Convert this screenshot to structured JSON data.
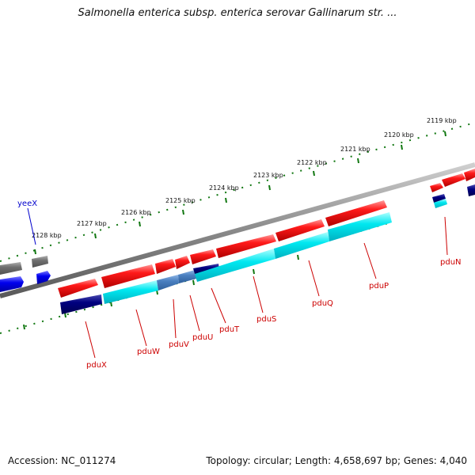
{
  "title": "Salmonella enterica subsp. enterica serovar Gallinarum str. ...",
  "footer": {
    "accession": "Accession: NC_011274",
    "summary": "Topology: circular; Length: 4,658,697 bp; Genes: 4,040"
  },
  "colors": {
    "forward_gene": "#ee0000",
    "reverse_gene_dark": "#000080",
    "reverse_gene_cyan": "#00e5ee",
    "reverse_gene_mid": "#4a7fc0",
    "other_gene_gray": "#707070",
    "other_gene_blue": "#0000ee",
    "backbone": "#888888",
    "ticks": "#117711",
    "label_red": "#cc0000",
    "label_blue": "#0000cc"
  },
  "ticks": [
    {
      "label": "2128 kbp"
    },
    {
      "label": "2127 kbp"
    },
    {
      "label": "2126 kbp"
    },
    {
      "label": "2125 kbp"
    },
    {
      "label": "2124 kbp"
    },
    {
      "label": "2123 kbp"
    },
    {
      "label": "2122 kbp"
    },
    {
      "label": "2121 kbp"
    },
    {
      "label": "2120 kbp"
    },
    {
      "label": "2119 kbp"
    }
  ],
  "genes": [
    {
      "name": "yeeX"
    },
    {
      "name": "pduX"
    },
    {
      "name": "pduW"
    },
    {
      "name": "pduV"
    },
    {
      "name": "pduU"
    },
    {
      "name": "pduT"
    },
    {
      "name": "pduS"
    },
    {
      "name": "pduQ"
    },
    {
      "name": "pduP"
    },
    {
      "name": "pduN"
    }
  ]
}
